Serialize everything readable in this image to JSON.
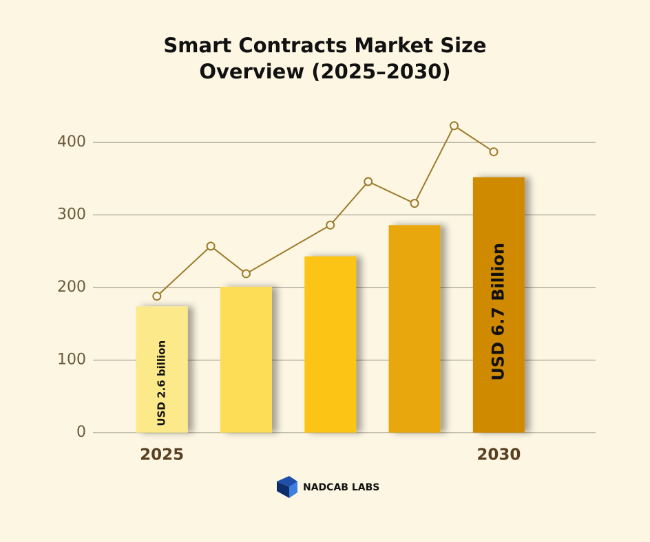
{
  "chart_data": {
    "type": "bar",
    "title": [
      "Smart Contracts Market Size",
      "Overview (2025–2030)"
    ],
    "categories": [
      "2025",
      null,
      null,
      null,
      "2030"
    ],
    "series": [
      {
        "type": "bar",
        "colors": [
          "#fbe98a",
          "#fddd55",
          "#fcc512",
          "#e8a80c",
          "#d08a04"
        ],
        "values": [
          174,
          201,
          243,
          286,
          352
        ]
      },
      {
        "type": "line",
        "color": "#9c7a2a",
        "x": [
          -0.06,
          0.58,
          1,
          2,
          2.45,
          3,
          3.47,
          3.94
        ],
        "values": [
          188,
          257,
          219,
          286,
          346,
          316,
          423,
          387
        ]
      }
    ],
    "annotations": [
      {
        "text": "USD 2.6 billion",
        "bar": 0
      },
      {
        "text": "USD 6.7 Billion",
        "bar": 4
      }
    ],
    "xlim": [
      -0.5,
      4.5
    ],
    "ylim": [
      0,
      400
    ],
    "yticks": [
      0,
      100,
      200,
      300,
      400
    ],
    "grid": true
  },
  "logo": "NADCAB LABS"
}
